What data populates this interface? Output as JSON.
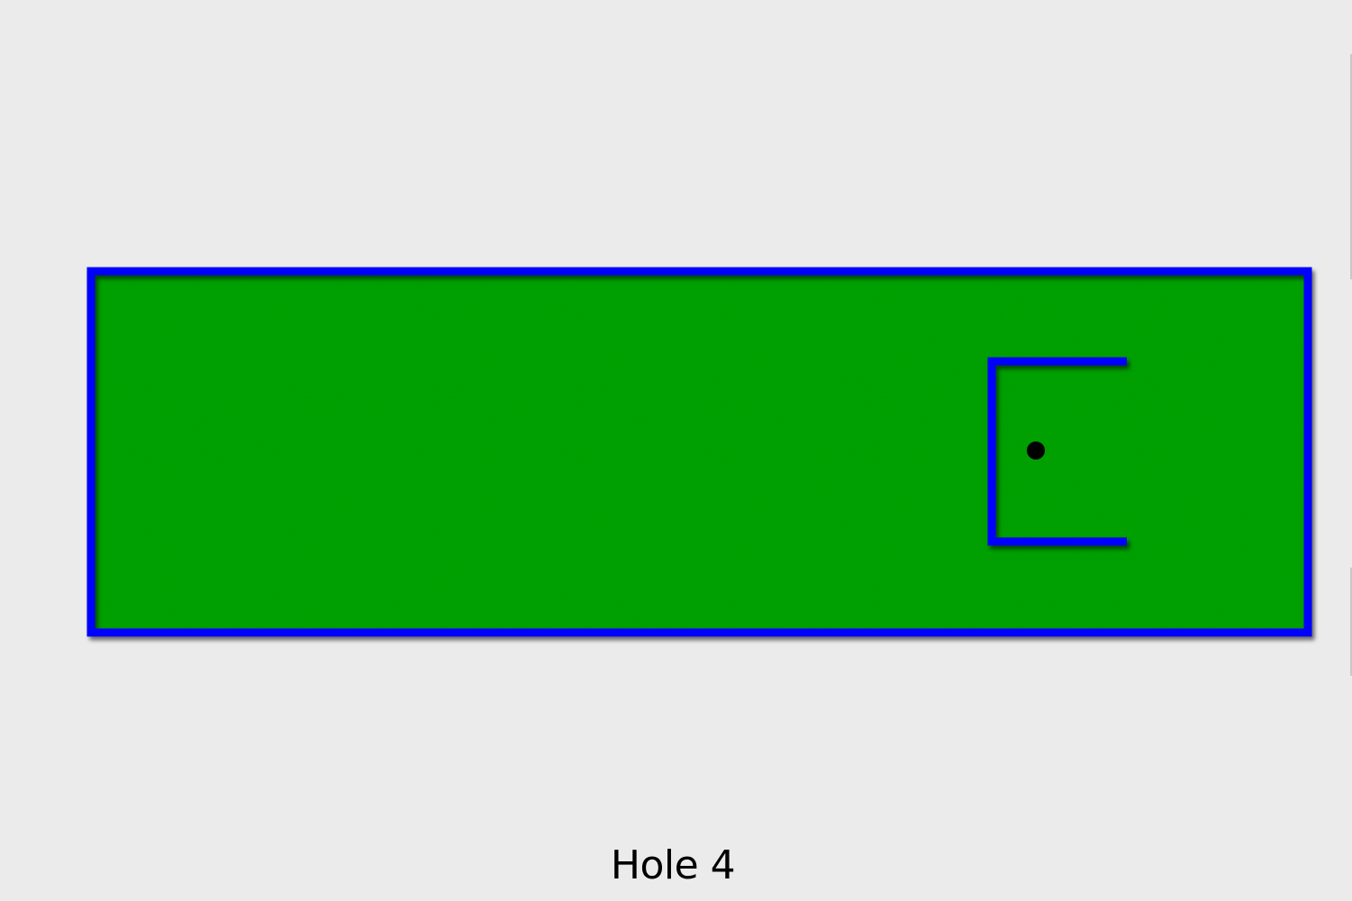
{
  "game": {
    "hole_label": "Hole 4"
  },
  "colors": {
    "background": "#ebebeb",
    "green": "#07ac07",
    "walls": "#0000ff",
    "hole": "#000000"
  }
}
